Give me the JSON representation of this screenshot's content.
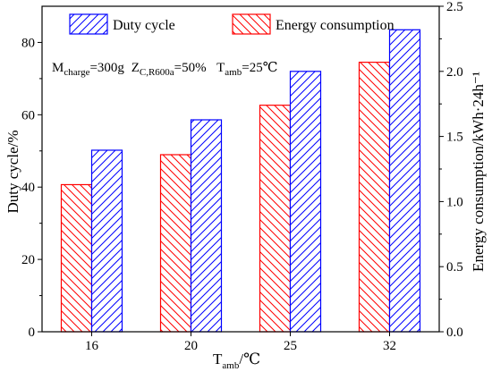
{
  "chart_data": {
    "type": "bar",
    "categories": [
      "16",
      "20",
      "25",
      "32"
    ],
    "series": [
      {
        "name": "Energy consumption",
        "axis": "right",
        "color": "#ff0000",
        "hatch": "backslash",
        "values": [
          1.13,
          1.36,
          1.74,
          2.07
        ]
      },
      {
        "name": "Duty cycle",
        "axis": "left",
        "color": "#0000ff",
        "hatch": "slash",
        "values": [
          50.2,
          58.6,
          72.0,
          83.5
        ]
      }
    ],
    "xlabel": {
      "main": "T",
      "sub": "amb",
      "unit": "/℃"
    },
    "ylabel_left": "Duty cycle/%",
    "ylabel_right": "Energy consumption/kWh·24h⁻¹",
    "ylim_left": [
      0,
      90
    ],
    "ylim_right": [
      0,
      2.5
    ],
    "yticks_left": [
      "0",
      "20",
      "40",
      "60",
      "80"
    ],
    "yticks_right": [
      "0.0",
      "0.5",
      "1.0",
      "1.5",
      "2.0",
      "2.5"
    ],
    "annotation": {
      "m_main": "M",
      "m_sub": "charge",
      "m_value": "=300g",
      "z_main": "Z",
      "z_sub": "C,R600a",
      "z_value": "=50%",
      "t_main": "T",
      "t_sub": "amb",
      "t_value": "=25℃"
    },
    "grid": false,
    "legend_placement": "top"
  }
}
